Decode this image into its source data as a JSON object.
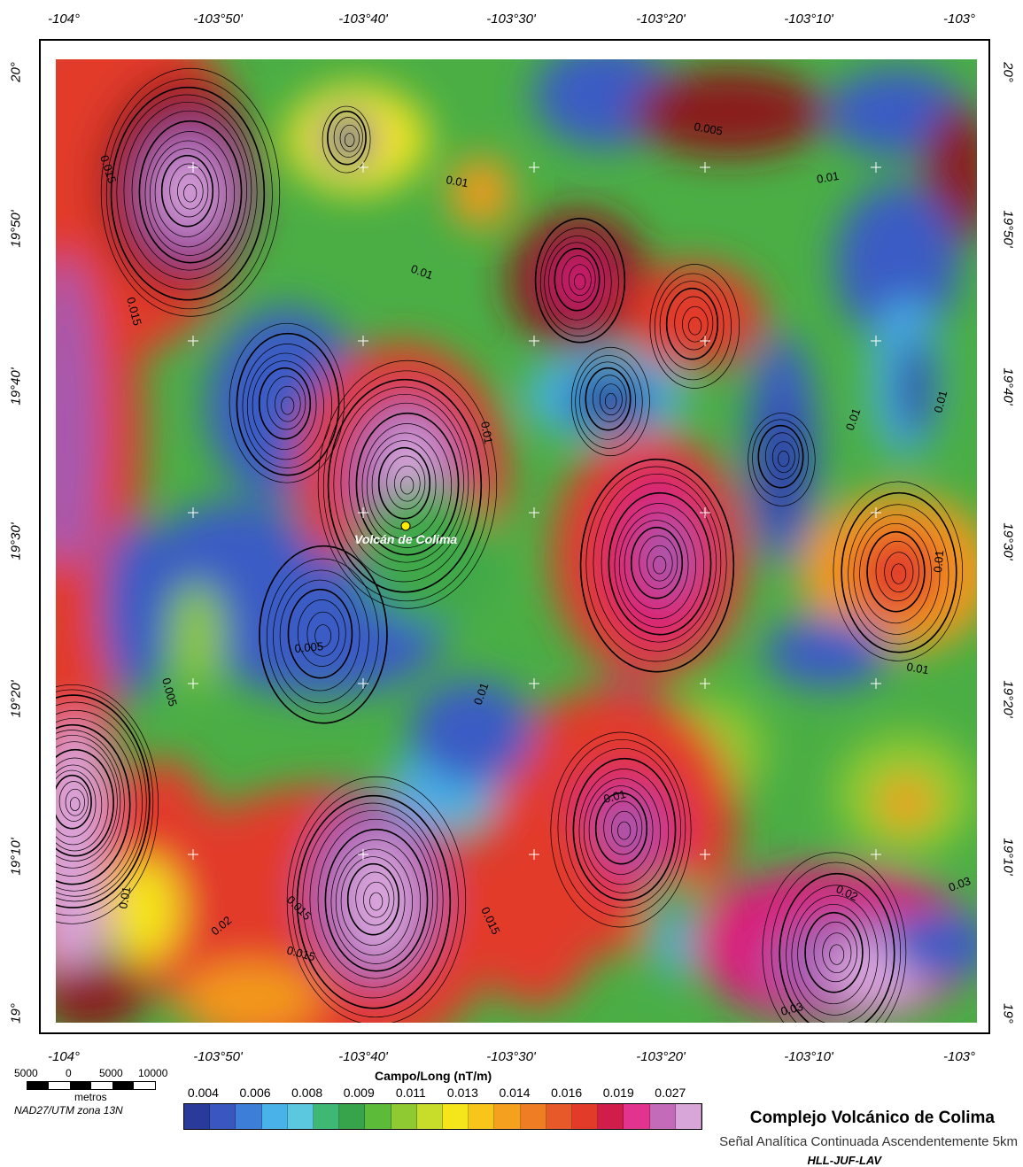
{
  "map": {
    "top_ticks": [
      "-104°",
      "-103°50'",
      "-103°40'",
      "-103°30'",
      "-103°20'",
      "-103°10'",
      "-103°"
    ],
    "bottom_ticks": [
      "-104°",
      "-103°50'",
      "-103°40'",
      "-103°30'",
      "-103°20'",
      "-103°10'",
      "-103°"
    ],
    "left_ticks": [
      "20°",
      "19°50'",
      "19°40'",
      "19°30'",
      "19°20'",
      "19°10'",
      "19°"
    ],
    "right_ticks": [
      "20°",
      "19°50'",
      "19°40'",
      "19°30'",
      "19°20'",
      "19°10'",
      "19°"
    ],
    "volcano_label": "Volcán de Colima",
    "contour_labels": [
      "0.015",
      "0.015",
      "0.01",
      "0.01",
      "0.01",
      "0.005",
      "0.01",
      "0.005",
      "0.01",
      "0.01",
      "0.005",
      "0.01",
      "0.01",
      "0.01",
      "0.02",
      "0.02",
      "0.015",
      "0.015",
      "0.015",
      "0.01",
      "0.03",
      "0.03",
      "0.01"
    ]
  },
  "scale": {
    "numbers": [
      "5000",
      "0",
      "5000",
      "10000"
    ],
    "unit": "metros",
    "projection": "NAD27/UTM zona 13N"
  },
  "legend": {
    "caption": "Campo/Long (nT/m)",
    "labels": [
      "0.004",
      "0.006",
      "0.008",
      "0.009",
      "0.011",
      "0.013",
      "0.014",
      "0.016",
      "0.019",
      "0.027"
    ],
    "colors": [
      "#2a3a9a",
      "#3a56c0",
      "#3d7fd8",
      "#49b2e8",
      "#5cc8e0",
      "#3fb873",
      "#37a34a",
      "#5dbb3a",
      "#8fca32",
      "#c8dc2a",
      "#f5e61c",
      "#f8c51a",
      "#f5a01e",
      "#ef7d24",
      "#e8592a",
      "#e23b2a",
      "#d01d4a",
      "#e2348e",
      "#c36bb8",
      "#d8a6d8"
    ]
  },
  "title": {
    "main": "Complejo Volcánico de Colima",
    "subtitle": "Señal Analítica Continuada Ascendentemente 5km",
    "authors": "HLL-JUF-LAV"
  }
}
